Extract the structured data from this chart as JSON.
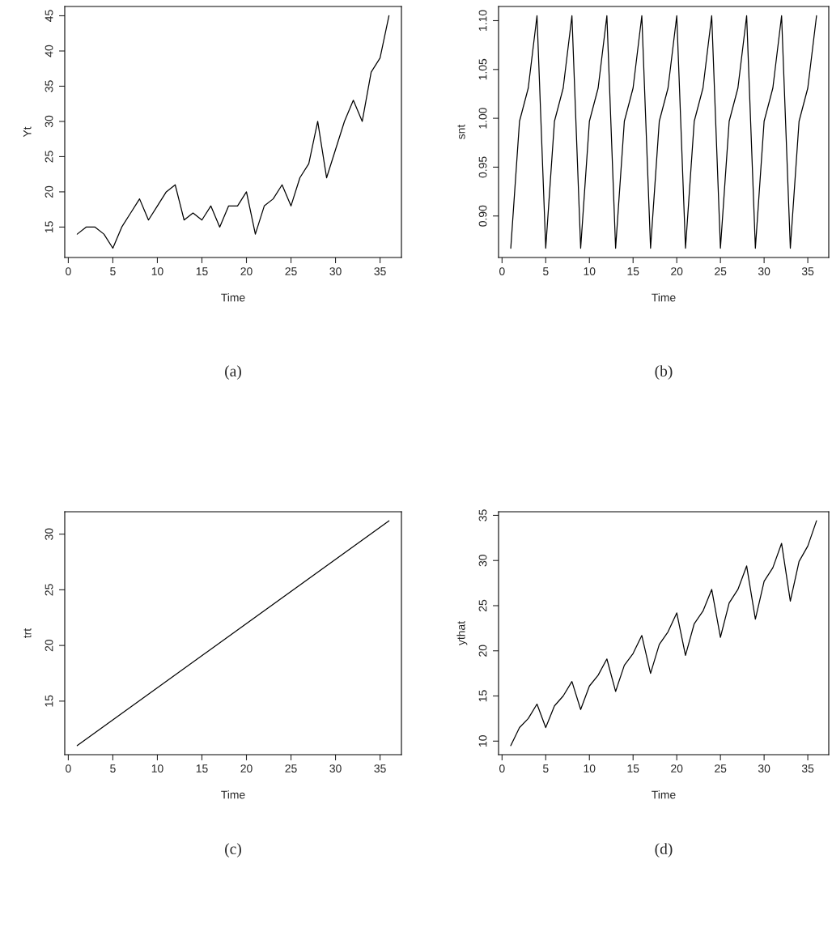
{
  "chart_data": [
    {
      "type": "line",
      "xlabel": "Time",
      "ylabel": "Yt",
      "annotations": [
        "(a)"
      ],
      "xlim": [
        -0.4,
        37.4
      ],
      "ylim": [
        10.68,
        46.32
      ],
      "xticks": [
        0,
        5,
        10,
        15,
        20,
        25,
        30,
        35
      ],
      "yticks": [
        15,
        20,
        25,
        30,
        35,
        40,
        45
      ],
      "grid": false,
      "legend": false,
      "marker": "none",
      "line_style": "solid",
      "series": [
        {
          "color": "#000000",
          "x": [
            1,
            2,
            3,
            4,
            5,
            6,
            7,
            8,
            9,
            10,
            11,
            12,
            13,
            14,
            15,
            16,
            17,
            18,
            19,
            20,
            21,
            22,
            23,
            24,
            25,
            26,
            27,
            28,
            29,
            30,
            31,
            32,
            33,
            34,
            35,
            36
          ],
          "values": [
            14,
            15,
            15,
            14,
            12,
            15,
            17,
            19,
            16,
            18,
            20,
            21,
            16,
            17,
            16,
            18,
            15,
            18,
            18,
            20,
            14,
            18,
            19,
            21,
            18,
            22,
            24,
            30,
            22,
            26,
            30,
            33,
            30,
            37,
            39,
            45
          ]
        }
      ]
    },
    {
      "type": "line",
      "xlabel": "Time",
      "ylabel": "snt",
      "annotations": [
        "(b)"
      ],
      "xlim": [
        -0.4,
        37.4
      ],
      "ylim": [
        0.8575,
        1.1145
      ],
      "xticks": [
        0,
        5,
        10,
        15,
        20,
        25,
        30,
        35
      ],
      "yticks": [
        {
          "value": 0.9,
          "label": "0.90"
        },
        {
          "value": 0.95,
          "label": "0.95"
        },
        {
          "value": 1.0,
          "label": "1.00"
        },
        {
          "value": 1.05,
          "label": "1.05"
        },
        {
          "value": 1.1,
          "label": "1.10"
        }
      ],
      "grid": false,
      "legend": false,
      "marker": "none",
      "line_style": "solid",
      "series": [
        {
          "color": "#000000",
          "x": [
            1,
            2,
            3,
            4,
            5,
            6,
            7,
            8,
            9,
            10,
            11,
            12,
            13,
            14,
            15,
            16,
            17,
            18,
            19,
            20,
            21,
            22,
            23,
            24,
            25,
            26,
            27,
            28,
            29,
            30,
            31,
            32,
            33,
            34,
            35,
            36
          ],
          "values": [
            0.867,
            0.997,
            1.031,
            1.105,
            0.867,
            0.997,
            1.031,
            1.105,
            0.867,
            0.997,
            1.031,
            1.105,
            0.867,
            0.997,
            1.031,
            1.105,
            0.867,
            0.997,
            1.031,
            1.105,
            0.867,
            0.997,
            1.031,
            1.105,
            0.867,
            0.997,
            1.031,
            1.105,
            0.867,
            0.997,
            1.031,
            1.105,
            0.867,
            0.997,
            1.031,
            1.105
          ]
        }
      ]
    },
    {
      "type": "line",
      "xlabel": "Time",
      "ylabel": "trt",
      "annotations": [
        "(c)"
      ],
      "xlim": [
        -0.4,
        37.4
      ],
      "ylim": [
        10.19,
        32.01
      ],
      "xticks": [
        0,
        5,
        10,
        15,
        20,
        25,
        30,
        35
      ],
      "yticks": [
        15,
        20,
        25,
        30
      ],
      "grid": false,
      "legend": false,
      "marker": "none",
      "line_style": "solid",
      "series": [
        {
          "color": "#000000",
          "x": [
            1,
            36
          ],
          "values": [
            11.0,
            31.2
          ]
        }
      ]
    },
    {
      "type": "line",
      "xlabel": "Time",
      "ylabel": "ythat",
      "annotations": [
        "(d)"
      ],
      "xlim": [
        -0.4,
        37.4
      ],
      "ylim": [
        8.5,
        35.4
      ],
      "xticks": [
        0,
        5,
        10,
        15,
        20,
        25,
        30,
        35
      ],
      "yticks": [
        10,
        15,
        20,
        25,
        30,
        35
      ],
      "grid": false,
      "legend": false,
      "marker": "none",
      "line_style": "solid",
      "series": [
        {
          "color": "#000000",
          "x": [
            1,
            2,
            3,
            4,
            5,
            6,
            7,
            8,
            9,
            10,
            11,
            12,
            13,
            14,
            15,
            16,
            17,
            18,
            19,
            20,
            21,
            22,
            23,
            24,
            25,
            26,
            27,
            28,
            29,
            30,
            31,
            32,
            33,
            34,
            35,
            36
          ],
          "values": [
            9.5,
            11.5,
            12.5,
            14.1,
            11.5,
            13.9,
            15.0,
            16.6,
            13.5,
            16.1,
            17.3,
            19.1,
            15.5,
            18.4,
            19.7,
            21.7,
            17.5,
            20.7,
            22.1,
            24.2,
            19.5,
            23.0,
            24.4,
            26.8,
            21.5,
            25.3,
            26.8,
            29.4,
            23.5,
            27.7,
            29.2,
            31.9,
            25.5,
            29.9,
            31.6,
            34.4
          ]
        }
      ]
    }
  ]
}
